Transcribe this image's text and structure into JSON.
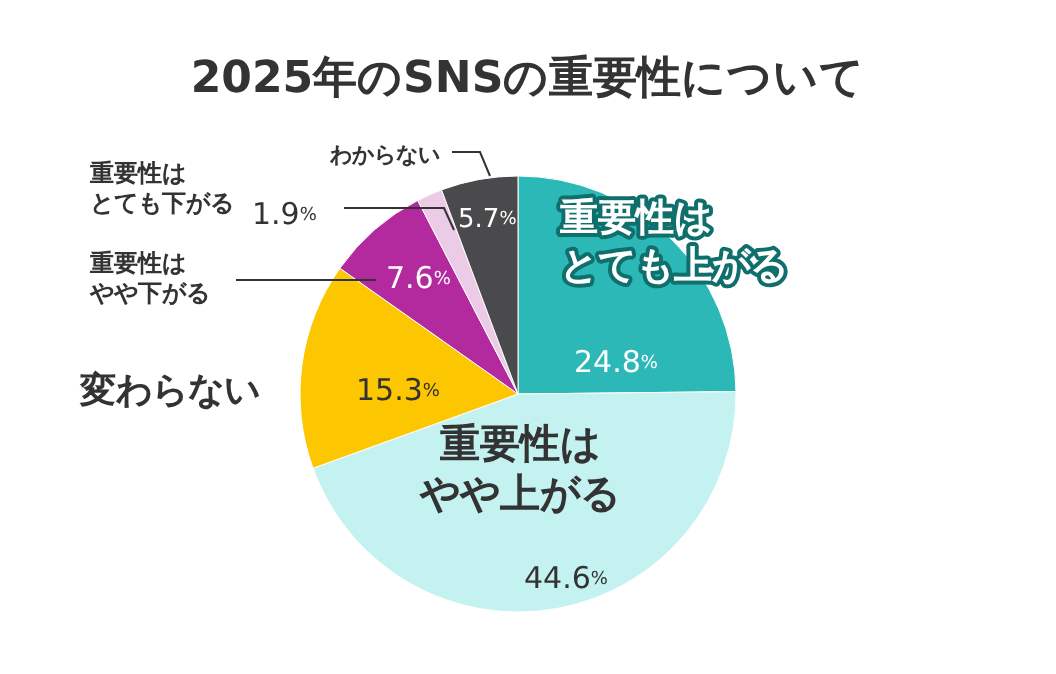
{
  "chart_data": {
    "type": "pie",
    "title": "2025年のSNSの重要性について",
    "categories": [
      "重要性はとても上がる",
      "重要性はやや上がる",
      "変わらない",
      "重要性はやや下がる",
      "重要性はとても下がる",
      "わからない"
    ],
    "values": [
      24.8,
      44.6,
      15.3,
      7.6,
      1.9,
      5.7
    ],
    "colors": [
      "#2bb8b6",
      "#c4f2f1",
      "#fcc600",
      "#b22a9e",
      "#eccbe6",
      "#4a4a4c"
    ],
    "value_labels": [
      "24.8%",
      "44.6%",
      "15.3%",
      "7.6%",
      "1.9%",
      "5.7%"
    ]
  }
}
